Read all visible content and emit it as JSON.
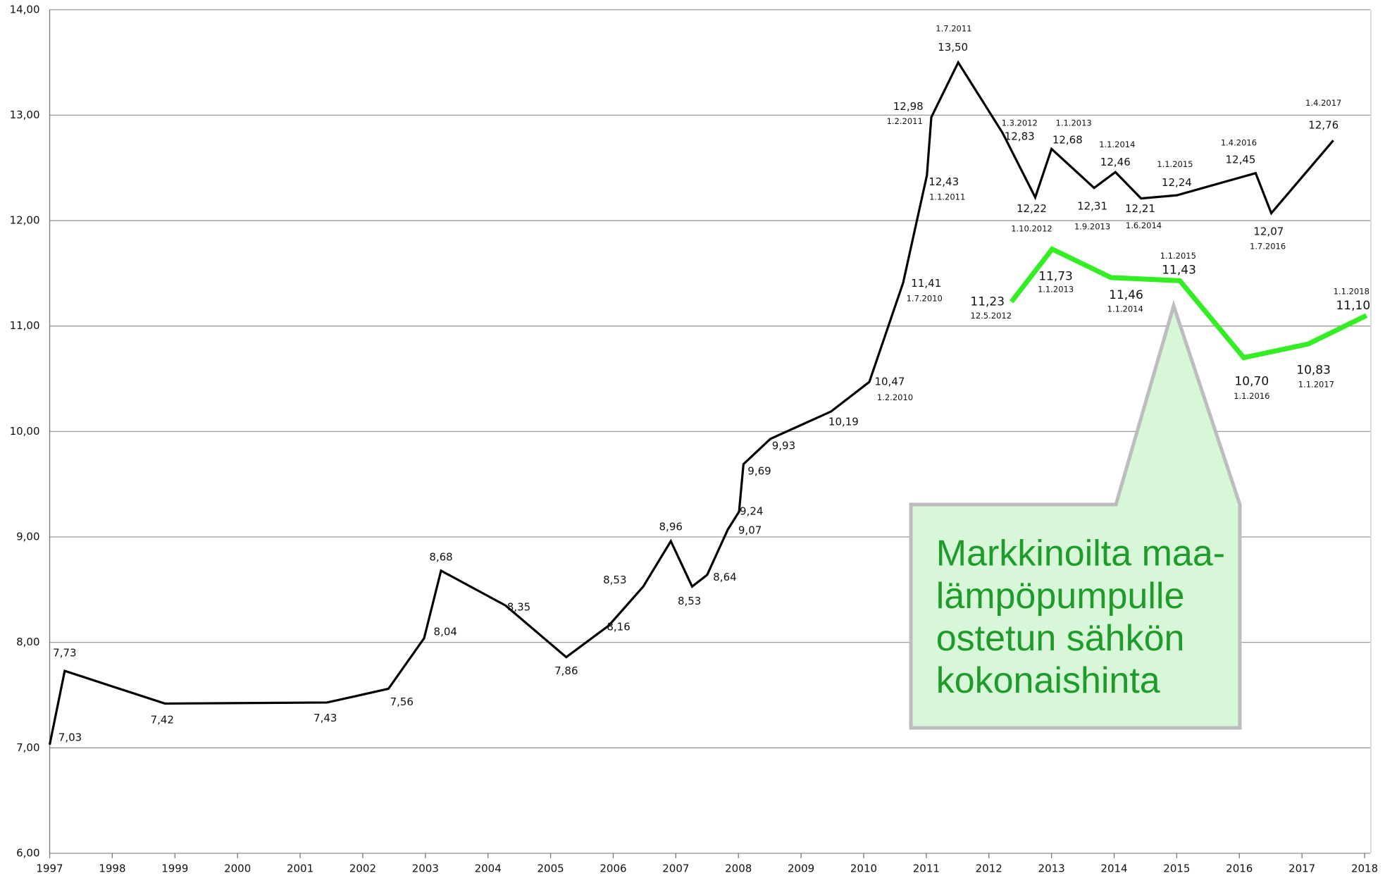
{
  "chart_data": {
    "type": "line",
    "xlim": [
      1997,
      2018
    ],
    "xticks": [
      1997,
      1998,
      1999,
      2000,
      2001,
      2002,
      2003,
      2004,
      2005,
      2006,
      2007,
      2008,
      2009,
      2010,
      2011,
      2012,
      2013,
      2014,
      2015,
      2016,
      2017,
      2018
    ],
    "ylim": [
      6,
      14
    ],
    "yticks": [
      {
        "value": 6,
        "label": "6,00"
      },
      {
        "value": 7,
        "label": "7,00"
      },
      {
        "value": 8,
        "label": "8,00"
      },
      {
        "value": 9,
        "label": "9,00"
      },
      {
        "value": 10,
        "label": "10,00"
      },
      {
        "value": 11,
        "label": "11,00"
      },
      {
        "value": 12,
        "label": "12,00"
      },
      {
        "value": 13,
        "label": "13,00"
      },
      {
        "value": 14,
        "label": "14,00"
      }
    ],
    "grid": true,
    "series": [
      {
        "color": "#000000",
        "x": [
          1997.0,
          1997.24,
          1998.84,
          2001.43,
          2002.41,
          2002.98,
          2003.25,
          2004.28,
          2005.25,
          2005.93,
          2006.48,
          2006.92,
          2007.26,
          2007.5,
          2007.83,
          2008.01,
          2008.08,
          2008.51,
          2009.48,
          2010.09,
          2010.63,
          2011.01,
          2011.08,
          2011.51,
          2012.22,
          2012.74,
          2013.0,
          2013.68,
          2014.02,
          2014.43,
          2015.0,
          2016.26,
          2016.51,
          2017.5
        ],
        "values": [
          7.03,
          7.73,
          7.42,
          7.43,
          7.56,
          8.04,
          8.68,
          8.35,
          7.86,
          8.16,
          8.53,
          8.96,
          8.53,
          8.64,
          9.07,
          9.24,
          9.69,
          9.93,
          10.19,
          10.47,
          11.41,
          12.43,
          12.98,
          13.5,
          12.83,
          12.22,
          12.68,
          12.31,
          12.46,
          12.21,
          12.24,
          12.45,
          12.07,
          12.76
        ],
        "value_labels": [
          "7,03",
          "7,73",
          "7,42",
          "7,43",
          "7,56",
          "8,04",
          "8,68",
          "8,35",
          "7,86",
          "8,16",
          "8,53",
          "8,96",
          "8,53",
          "8,64",
          "9,07",
          "9,24",
          "9,69",
          "9,93",
          "10,19",
          "10,47",
          "11,41",
          "12,43",
          "12,98",
          "13,50",
          "12,83",
          "12,22",
          "12,68",
          "12,31",
          "12,46",
          "12,21",
          "12,24",
          "12,45",
          "12,07",
          "12,76"
        ],
        "dates": [
          null,
          null,
          null,
          null,
          null,
          null,
          null,
          null,
          null,
          null,
          null,
          null,
          null,
          null,
          null,
          null,
          null,
          null,
          null,
          "1.2.2010",
          "1.7.2010",
          "1.1.2011",
          "1.2.2011",
          "1.7.2011",
          "1.3.2012",
          "1.10.2012",
          "1.1.2013",
          "1.9.2013",
          "1.1.2014",
          "1.6.2014",
          "1.1.2015",
          "1.4.2016",
          "1.7.2016",
          "1.4.2017"
        ]
      },
      {
        "color": "#33ee22",
        "x": [
          2012.36,
          2013.01,
          2013.95,
          2015.05,
          2016.07,
          2017.1,
          2018.03
        ],
        "values": [
          11.23,
          11.73,
          11.46,
          11.43,
          10.7,
          10.83,
          11.1
        ],
        "value_labels": [
          "11,23",
          "11,73",
          "11,46",
          "11,43",
          "10,70",
          "10,83",
          "11,10"
        ],
        "dates": [
          "12.5.2012",
          "1.1.2013",
          "1.1.2014",
          "1.1.2015",
          "1.1.2016",
          "1.1.2017",
          "1.1.2018"
        ]
      }
    ],
    "annotation": [
      "Markkinoilta maa-",
      "lämpöpumpulle",
      "ostetun sähkön",
      "kokonaishinta"
    ]
  }
}
